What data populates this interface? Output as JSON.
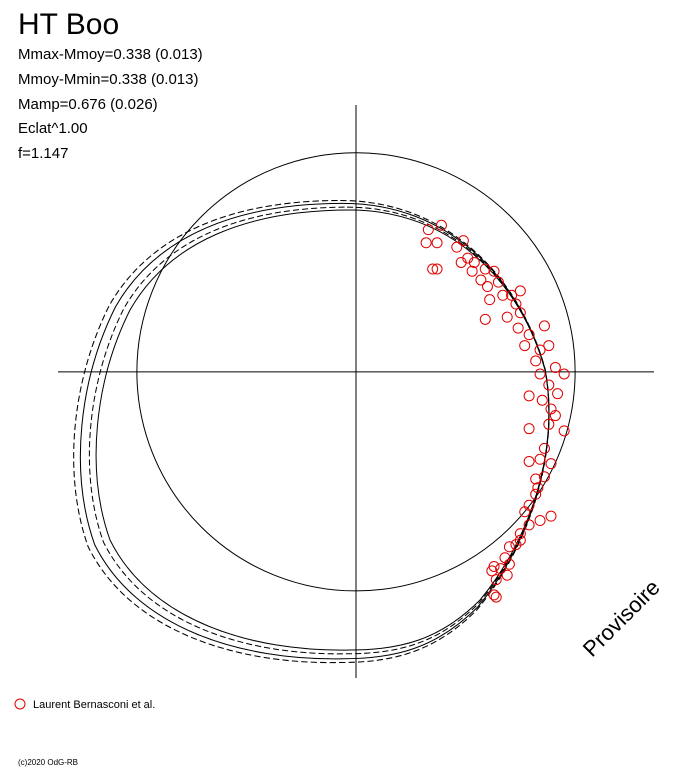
{
  "chart_data": {
    "type": "polar-scatter",
    "title": "HT Boo",
    "annotations": [
      "Mmax-Mmoy=0.338 (0.013)",
      "Mmoy-Mmin=0.338 (0.013)",
      "Mamp=0.676 (0.026)",
      "Eclat^1.00",
      "f=1.147"
    ],
    "watermark": "Provisoire",
    "credit": "(c)2020 OdG-RB",
    "xlim": [
      -1.36,
      1.36
    ],
    "ylim": [
      -1.4,
      1.22
    ],
    "series": [
      {
        "name": "Laurent Bernasconi et al.",
        "color": "#e00000",
        "x": [
          0.33,
          0.39,
          0.32,
          0.37,
          0.49,
          0.35,
          0.37,
          0.46,
          0.51,
          0.54,
          0.48,
          0.53,
          0.59,
          0.63,
          0.57,
          0.6,
          0.65,
          0.61,
          0.67,
          0.71,
          0.73,
          0.69,
          0.59,
          0.75,
          0.74,
          0.79,
          0.86,
          0.77,
          0.84,
          0.82,
          0.88,
          0.91,
          0.84,
          0.88,
          0.95,
          0.79,
          0.92,
          0.89,
          0.88,
          0.79,
          0.91,
          0.95,
          0.86,
          0.84,
          0.89,
          0.79,
          0.86,
          0.83,
          0.82,
          0.79,
          0.77,
          0.89,
          0.84,
          0.79,
          0.75,
          0.73,
          0.7,
          0.68,
          0.7,
          0.66,
          0.62,
          0.63,
          0.64,
          0.69,
          0.75,
          0.82,
          0.85,
          0.75,
          0.64,
          0.63
        ],
        "values": [
          0.65,
          0.67,
          0.59,
          0.59,
          0.6,
          0.47,
          0.47,
          0.57,
          0.52,
          0.5,
          0.5,
          0.46,
          0.47,
          0.46,
          0.42,
          0.39,
          0.41,
          0.33,
          0.35,
          0.35,
          0.31,
          0.25,
          0.24,
          0.27,
          0.2,
          0.17,
          0.21,
          0.12,
          0.1,
          0.05,
          0.12,
          0.02,
          -0.01,
          -0.06,
          -0.01,
          -0.11,
          -0.1,
          -0.17,
          -0.24,
          -0.26,
          -0.2,
          -0.27,
          -0.35,
          -0.4,
          -0.42,
          -0.41,
          -0.48,
          -0.53,
          -0.56,
          -0.61,
          -0.64,
          -0.66,
          -0.68,
          -0.7,
          -0.74,
          -0.79,
          -0.8,
          -0.85,
          -0.88,
          -0.9,
          -0.91,
          -1.02,
          -0.95,
          -0.93,
          -0.77,
          -0.49,
          -0.13,
          0.37,
          -1.03,
          -0.89
        ]
      }
    ]
  }
}
